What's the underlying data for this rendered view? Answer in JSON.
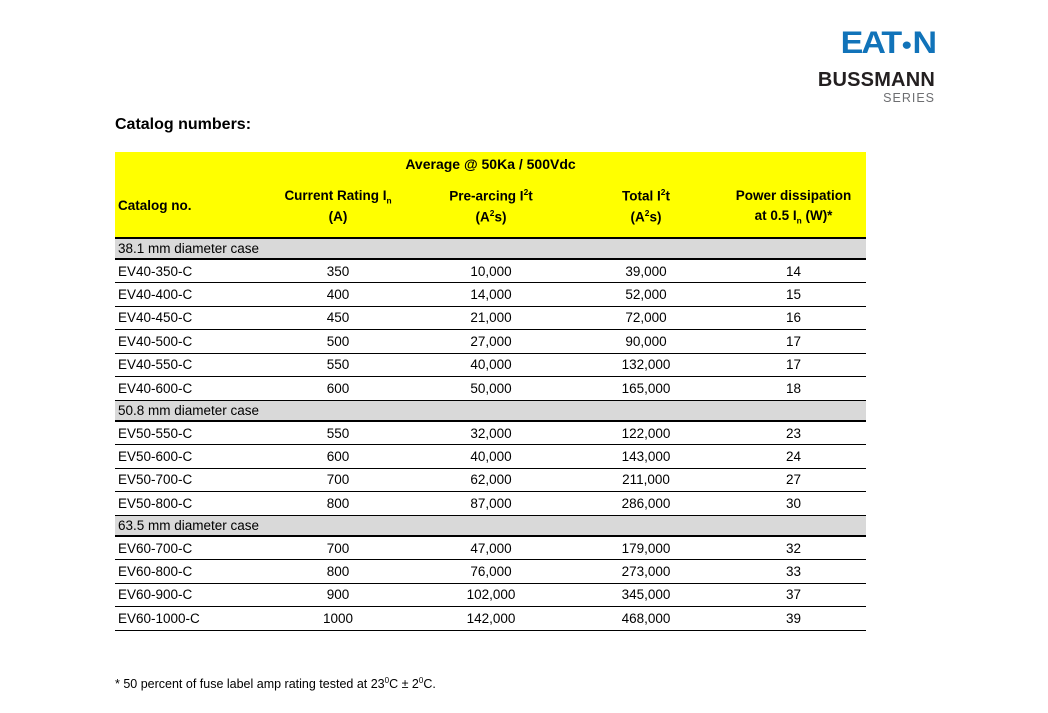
{
  "brand": {
    "eaton_wordmark_pre": "EAT",
    "eaton_wordmark_dot": "●",
    "eaton_wordmark_post": "N",
    "eaton_blue": "#1173b9",
    "bussmann_label": "BUSSMANN",
    "series_label": "SERIES"
  },
  "page": {
    "title": "Catalog numbers:",
    "background": "#ffffff"
  },
  "table": {
    "banner": "Average @ 50Ka / 500Vdc",
    "header_fill": "#ffff00",
    "section_fill": "#d9d9d9",
    "header": {
      "catalog": "Catalog no.",
      "current_main": "Current Rating I",
      "current_sub": "n",
      "current_unit": "(A)",
      "prearcing_main": "Pre-arcing I",
      "prearcing_sup": "2",
      "prearcing_after": "t",
      "prearcing_unit_pre": "(A",
      "prearcing_unit_sup": "2",
      "prearcing_unit_post": "s)",
      "total_main": "Total I",
      "total_sup": "2",
      "total_after": "t",
      "total_unit_pre": "(A",
      "total_unit_sup": "2",
      "total_unit_post": "s)",
      "power_line1": "Power dissipation",
      "power_line2_pre": "at 0.5 I",
      "power_line2_sub": "n",
      "power_line2_post": " (W)*"
    },
    "sections": [
      {
        "label": "38.1 mm diameter case",
        "rows": [
          {
            "catalog": "EV40-350-C",
            "current": "350",
            "prearcing": "10,000",
            "total": "39,000",
            "power": "14"
          },
          {
            "catalog": "EV40-400-C",
            "current": "400",
            "prearcing": "14,000",
            "total": "52,000",
            "power": "15"
          },
          {
            "catalog": "EV40-450-C",
            "current": "450",
            "prearcing": "21,000",
            "total": "72,000",
            "power": "16"
          },
          {
            "catalog": "EV40-500-C",
            "current": "500",
            "prearcing": "27,000",
            "total": "90,000",
            "power": "17"
          },
          {
            "catalog": "EV40-550-C",
            "current": "550",
            "prearcing": "40,000",
            "total": "132,000",
            "power": "17"
          },
          {
            "catalog": "EV40-600-C",
            "current": "600",
            "prearcing": "50,000",
            "total": "165,000",
            "power": "18"
          }
        ]
      },
      {
        "label": "50.8 mm diameter case",
        "rows": [
          {
            "catalog": "EV50-550-C",
            "current": "550",
            "prearcing": "32,000",
            "total": "122,000",
            "power": "23"
          },
          {
            "catalog": "EV50-600-C",
            "current": "600",
            "prearcing": "40,000",
            "total": "143,000",
            "power": "24"
          },
          {
            "catalog": "EV50-700-C",
            "current": "700",
            "prearcing": "62,000",
            "total": "211,000",
            "power": "27"
          },
          {
            "catalog": "EV50-800-C",
            "current": "800",
            "prearcing": "87,000",
            "total": "286,000",
            "power": "30"
          }
        ]
      },
      {
        "label": "63.5 mm diameter case",
        "rows": [
          {
            "catalog": "EV60-700-C",
            "current": "700",
            "prearcing": "47,000",
            "total": "179,000",
            "power": "32"
          },
          {
            "catalog": "EV60-800-C",
            "current": "800",
            "prearcing": "76,000",
            "total": "273,000",
            "power": "33"
          },
          {
            "catalog": "EV60-900-C",
            "current": "900",
            "prearcing": "102,000",
            "total": "345,000",
            "power": "37"
          },
          {
            "catalog": "EV60-1000-C",
            "current": "1000",
            "prearcing": "142,000",
            "total": "468,000",
            "power": "39"
          }
        ]
      }
    ]
  },
  "footnote": {
    "pre": "* 50 percent of fuse label amp rating tested at 23",
    "sup_a": "0",
    "mid": "C ± 2",
    "sup_b": "0",
    "post": "C."
  }
}
